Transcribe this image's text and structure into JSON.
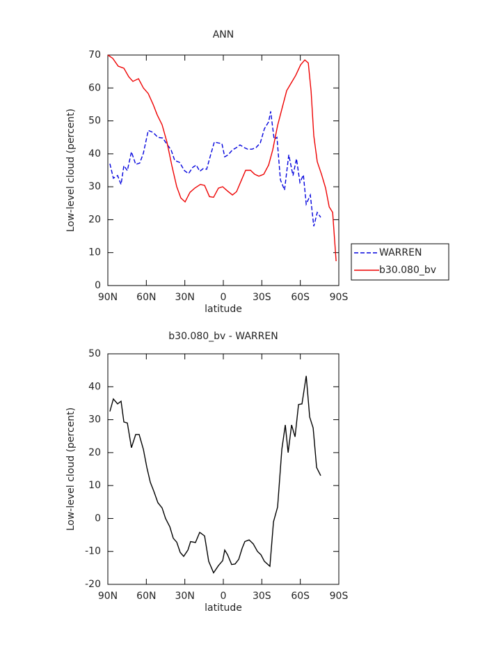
{
  "chart_data": [
    {
      "type": "line",
      "title": "ANN",
      "xlabel": "latitude",
      "ylabel": "Low-level cloud (percent)",
      "xlim": [
        90,
        -90
      ],
      "xticks": [
        {
          "value": 90,
          "label": "90N"
        },
        {
          "value": 60,
          "label": "60N"
        },
        {
          "value": 30,
          "label": "30N"
        },
        0,
        {
          "value": -30,
          "label": "30S"
        },
        {
          "value": -60,
          "label": "60S"
        },
        {
          "value": -90,
          "label": "90S"
        }
      ],
      "ylim": [
        0,
        70
      ],
      "yticks": [
        0,
        10,
        20,
        30,
        40,
        50,
        60,
        70
      ],
      "legend": "right",
      "series": [
        {
          "name": "WARREN",
          "color": "#0000dd",
          "dash": "dashed",
          "x": [
            88.4,
            85.7,
            82.4,
            79.7,
            77.5,
            74.8,
            71.6,
            68.3,
            65.1,
            62.3,
            58.5,
            54.7,
            51,
            47.2,
            43.9,
            40.7,
            37.9,
            34.1,
            30.3,
            27.1,
            23.8,
            21.1,
            18.4,
            15.7,
            13,
            10.3,
            7,
            3.8,
            1.1,
            -1.1,
            -3.8,
            -7.1,
            -10.3,
            -13,
            -16.3,
            -19,
            -22.3,
            -25.5,
            -28.8,
            -32,
            -35.3,
            -36.9,
            -39.6,
            -41.8,
            -44.5,
            -47.7,
            -51,
            -54.3,
            -57,
            -59.7,
            -62.4,
            -64.6,
            -67.8,
            -70.5,
            -73.2,
            -75.9
          ],
          "values": [
            37,
            32.6,
            33.4,
            30.7,
            36.4,
            34.9,
            40.6,
            36.8,
            37.2,
            40.2,
            47.1,
            46.5,
            45,
            44.8,
            42.9,
            41.2,
            38,
            37.4,
            34.9,
            34,
            35.9,
            36.6,
            34.7,
            35.5,
            35.3,
            39.1,
            43.6,
            43.3,
            43.1,
            39.1,
            39.7,
            41.2,
            41.9,
            42.7,
            41.9,
            41.4,
            41.4,
            41.9,
            43.3,
            47.6,
            49.7,
            52.9,
            44.4,
            45,
            32.1,
            29,
            39.7,
            33.4,
            38.5,
            31.3,
            33.6,
            24.7,
            27.5,
            18,
            22.2,
            20.7
          ]
        },
        {
          "name": "b30.080_bv",
          "color": "#ee0000",
          "dash": "solid",
          "x": [
            90,
            86.2,
            81.9,
            77.5,
            73.7,
            70.5,
            66.1,
            62.3,
            58.5,
            54.7,
            51.5,
            47.7,
            43.9,
            40.1,
            36.3,
            33.1,
            29.8,
            26,
            22.2,
            17.9,
            14.6,
            10.8,
            7.6,
            3.8,
            0.5,
            -3.3,
            -7.1,
            -10.3,
            -14.1,
            -17.4,
            -21.2,
            -24.4,
            -27.7,
            -31.5,
            -35.3,
            -38.5,
            -42.3,
            -46.1,
            -49.4,
            -53.2,
            -56.4,
            -60.2,
            -63.5,
            -66.2,
            -68.4,
            -70.5,
            -73.2,
            -76.5,
            -79.7,
            -82.5,
            -85.2,
            -87.9
          ],
          "values": [
            70,
            69,
            66.6,
            66,
            63.4,
            62,
            62.8,
            60,
            58.3,
            55,
            51.8,
            48.8,
            43.5,
            36.4,
            30,
            26.6,
            25.4,
            28.3,
            29.6,
            30.7,
            30.4,
            27,
            26.8,
            29.6,
            30,
            28.7,
            27.5,
            28.5,
            32,
            35,
            35,
            33.8,
            33.2,
            33.8,
            36.6,
            41.2,
            48.6,
            54.3,
            59.2,
            61.7,
            63.8,
            67,
            68.5,
            67.6,
            59,
            45.5,
            37.6,
            33.8,
            29.6,
            23.9,
            22.2,
            7.4
          ]
        }
      ]
    },
    {
      "type": "line",
      "title": "b30.080_bv - WARREN",
      "xlabel": "latitude",
      "ylabel": "Low-level cloud (percent)",
      "xlim": [
        90,
        -90
      ],
      "xticks": [
        {
          "value": 90,
          "label": "90N"
        },
        {
          "value": 60,
          "label": "60N"
        },
        {
          "value": 30,
          "label": "30N"
        },
        0,
        {
          "value": -30,
          "label": "30S"
        },
        {
          "value": -60,
          "label": "60S"
        },
        {
          "value": -90,
          "label": "90S"
        }
      ],
      "ylim": [
        -20,
        50
      ],
      "yticks": [
        -20,
        -10,
        0,
        10,
        20,
        30,
        40,
        50
      ],
      "series": [
        {
          "color": "#000000",
          "dash": "solid",
          "x": [
            88.4,
            85.7,
            82.4,
            79.7,
            77.5,
            74.8,
            71.6,
            68.3,
            65.6,
            62.3,
            59.6,
            56.9,
            54.2,
            51,
            47.7,
            45,
            41.7,
            39,
            36.3,
            33.6,
            30.9,
            27.6,
            25.5,
            21.7,
            18.4,
            14.6,
            11.4,
            7.6,
            3.8,
            0.5,
            -1.1,
            -3.3,
            -6.5,
            -9.2,
            -12,
            -14.7,
            -16.8,
            -20.1,
            -23.3,
            -26.6,
            -29.3,
            -32,
            -36.3,
            -39.1,
            -42.3,
            -45.6,
            -48.3,
            -50.5,
            -53.2,
            -55.9,
            -58.6,
            -61.3,
            -64.6,
            -67.3,
            -70,
            -72.7,
            -75.9
          ],
          "values": [
            32.5,
            36.3,
            34.8,
            35.6,
            29.3,
            29,
            21.5,
            25.5,
            25.5,
            21,
            15.5,
            11,
            8.3,
            4.8,
            3.2,
            0,
            -2.5,
            -6,
            -7.2,
            -10.3,
            -11.5,
            -9.6,
            -7,
            -7.3,
            -4.2,
            -5.3,
            -13,
            -16.5,
            -14.3,
            -12.8,
            -9.6,
            -11,
            -14,
            -13.8,
            -12.4,
            -9,
            -7,
            -6.5,
            -7.7,
            -10,
            -11,
            -13,
            -14.5,
            -1,
            3.5,
            21,
            28.4,
            20,
            28.4,
            24.8,
            34.6,
            34.8,
            43.3,
            30.8,
            27.5,
            15.5,
            13
          ]
        }
      ]
    }
  ]
}
